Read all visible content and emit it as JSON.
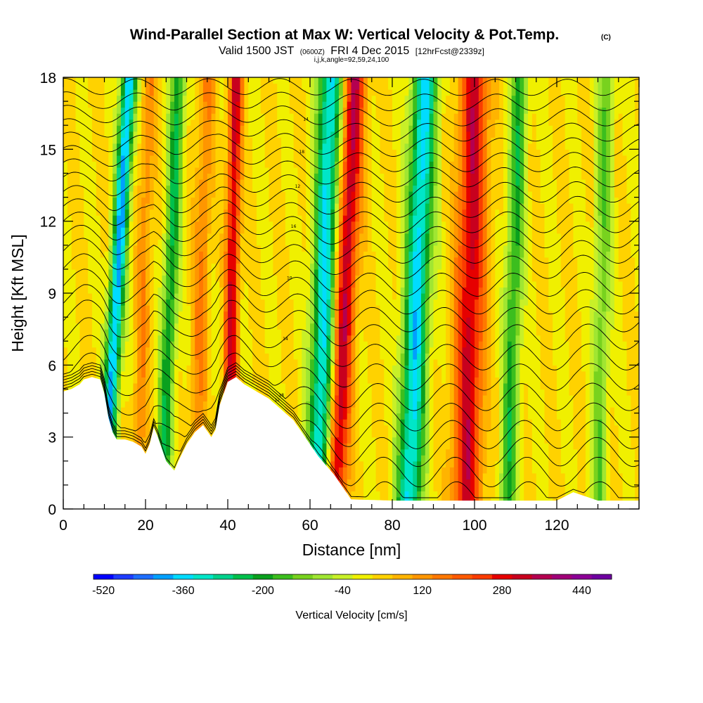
{
  "title": "Wind-Parallel Section at Max W: Vertical Velocity & Pot.Temp.",
  "copyright": "(C)",
  "subtitle": {
    "prefix": "Valid 1500 JST",
    "zulu": "(0600Z)",
    "date": "FRI 4 Dec 2015",
    "fcst": "[12hrFcst@2339z]"
  },
  "params_line": "i,j,k,angle=92,59,24,100",
  "chart_data": {
    "type": "heatmap",
    "xlabel": "Distance [nm]",
    "ylabel": "Height [Kft MSL]",
    "xlim": [
      0,
      140
    ],
    "ylim": [
      0,
      18
    ],
    "x_ticks": [
      0,
      20,
      40,
      60,
      80,
      100,
      120
    ],
    "x_tick_labels": [
      "0",
      "20",
      "40",
      "60",
      "80",
      "100",
      "120"
    ],
    "y_ticks": [
      0,
      3,
      6,
      9,
      12,
      15,
      18
    ],
    "y_tick_labels": [
      "0",
      "3",
      "6",
      "9",
      "12",
      "15",
      "18"
    ],
    "terrain": {
      "x": [
        0,
        2,
        4,
        5,
        7,
        9,
        10,
        11,
        12,
        13,
        15,
        17,
        19,
        20,
        21,
        22,
        23,
        24,
        25,
        26,
        27,
        28,
        30,
        32,
        34,
        36,
        37,
        38,
        40,
        42,
        44,
        46,
        48,
        50,
        52,
        54,
        56,
        58,
        60,
        62,
        64,
        66,
        68,
        70,
        80,
        90,
        100,
        110,
        120,
        124,
        130,
        135,
        140
      ],
      "y": [
        4.9,
        5.0,
        5.2,
        5.4,
        5.5,
        5.4,
        4.8,
        3.8,
        3.2,
        2.9,
        2.9,
        2.8,
        2.6,
        2.3,
        2.7,
        3.4,
        3.0,
        2.5,
        2.0,
        1.8,
        1.6,
        2.0,
        2.7,
        3.2,
        3.5,
        3.0,
        3.3,
        4.3,
        5.3,
        5.5,
        5.2,
        5.0,
        4.8,
        4.6,
        4.3,
        4.0,
        3.7,
        3.2,
        2.7,
        2.2,
        1.8,
        1.4,
        0.9,
        0.4,
        0.35,
        0.35,
        0.35,
        0.35,
        0.35,
        0.7,
        0.35,
        0.35,
        0.35
      ]
    },
    "w_bands": [
      {
        "x": 10,
        "lean": 6,
        "amp": -420,
        "width": 1.8
      },
      {
        "x": 24,
        "lean": 4,
        "amp": -240,
        "width": 1.8
      },
      {
        "x": 40,
        "lean": 2,
        "amp": 300,
        "width": 1.6
      },
      {
        "x": 62,
        "lean": 3,
        "amp": -380,
        "width": 2.8
      },
      {
        "x": 66,
        "lean": 5,
        "amp": 320,
        "width": 2.6
      },
      {
        "x": 84,
        "lean": 4,
        "amp": -380,
        "width": 3.0
      },
      {
        "x": 98,
        "lean": 2,
        "amp": 300,
        "width": 3.5
      },
      {
        "x": 108,
        "lean": 3,
        "amp": -220,
        "width": 2.0
      },
      {
        "x": 130,
        "lean": 2,
        "amp": -150,
        "width": 2.0
      },
      {
        "x": 32,
        "lean": 3,
        "amp": 120,
        "width": 2.0
      },
      {
        "x": 18,
        "lean": 3,
        "amp": 110,
        "width": 1.8
      }
    ],
    "isentropes": {
      "base_heights": [
        1.2,
        2.2,
        3.0,
        3.7,
        4.4,
        5.2,
        6.0,
        6.8,
        7.6,
        8.3,
        9.0,
        9.7,
        10.4,
        11.0,
        11.6,
        12.2,
        12.8,
        13.4,
        14.0,
        14.6,
        15.2,
        15.8,
        16.4,
        17.0,
        17.6
      ],
      "labels": [
        "10",
        "12",
        "14",
        "16",
        "18"
      ]
    },
    "colorbar": {
      "title": "Vertical Velocity [cm/s]",
      "levels": [
        -520,
        -480,
        -440,
        -400,
        -360,
        -320,
        -280,
        -240,
        -200,
        -160,
        -120,
        -80,
        -40,
        0,
        40,
        80,
        120,
        160,
        200,
        240,
        280,
        320,
        360,
        400,
        440,
        480
      ],
      "tick_labels": [
        "-520",
        "-360",
        "-200",
        "-40",
        "120",
        "280",
        "440"
      ],
      "colors": [
        "#0000ff",
        "#1e3cff",
        "#1e6eff",
        "#00a0ff",
        "#00dcff",
        "#00e6c8",
        "#00d28c",
        "#00c04c",
        "#0aa01e",
        "#3cbe1e",
        "#78d21e",
        "#a0e632",
        "#c8f028",
        "#f0f000",
        "#ffd200",
        "#ffb400",
        "#ff9600",
        "#ff7800",
        "#ff5a00",
        "#fa3c00",
        "#e60000",
        "#c8001e",
        "#b40050",
        "#a00078",
        "#8c0096",
        "#6e00a0"
      ]
    }
  }
}
